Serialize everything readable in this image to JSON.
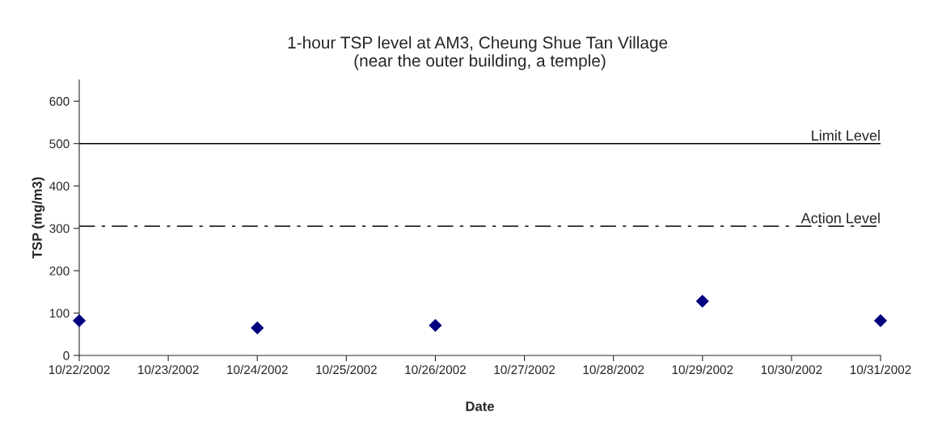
{
  "chart_data": {
    "type": "scatter",
    "title": "1-hour TSP level at AM3, Cheung Shue Tan Village \n(near the outer building, a temple)",
    "xlabel": "Date",
    "ylabel": "TSP (mg/m3)",
    "x": [
      "2002-10-22",
      "2002-10-24",
      "2002-10-26",
      "2002-10-29",
      "2002-10-31"
    ],
    "series": [
      {
        "color": "#000080",
        "values": [
          82,
          65,
          71,
          128,
          82
        ]
      }
    ],
    "marker": "diamond",
    "xlim": [
      "2002-10-22",
      "2002-10-31"
    ],
    "xticks": [
      {
        "value": "2002-10-22",
        "label": "10/22/2002"
      },
      {
        "value": "2002-10-23",
        "label": "10/23/2002"
      },
      {
        "value": "2002-10-24",
        "label": "10/24/2002"
      },
      {
        "value": "2002-10-25",
        "label": "10/25/2002"
      },
      {
        "value": "2002-10-26",
        "label": "10/26/2002"
      },
      {
        "value": "2002-10-27",
        "label": "10/27/2002"
      },
      {
        "value": "2002-10-28",
        "label": "10/28/2002"
      },
      {
        "value": "2002-10-29",
        "label": "10/29/2002"
      },
      {
        "value": "2002-10-30",
        "label": "10/30/2002"
      },
      {
        "value": "2002-10-31",
        "label": "10/31/2002"
      }
    ],
    "ylim": [
      0,
      650
    ],
    "yticks": [
      0,
      100,
      200,
      300,
      400,
      500,
      600
    ],
    "ref_lines": [
      {
        "axis": "y",
        "value": 500,
        "label": "Limit Level",
        "color": "#000000",
        "line_style": "solid"
      },
      {
        "axis": "y",
        "value": 305,
        "label": "Action Level",
        "color": "#000000",
        "line_style": "dashdot"
      }
    ],
    "grid": false,
    "legend": false
  }
}
